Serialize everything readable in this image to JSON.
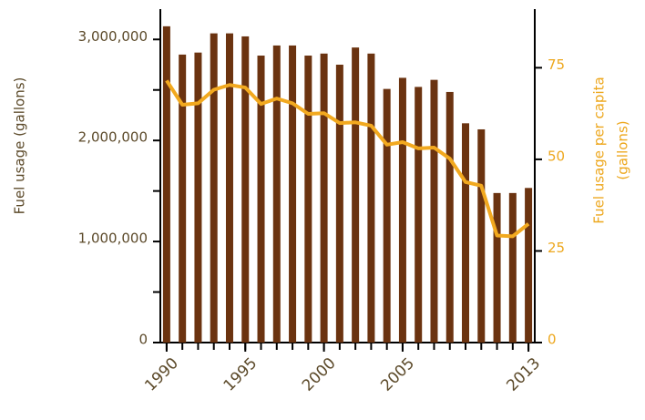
{
  "chart_data": {
    "type": "bar-line",
    "x": [
      1990,
      1991,
      1992,
      1993,
      1994,
      1995,
      1996,
      1997,
      1998,
      1999,
      2000,
      2001,
      2002,
      2003,
      2004,
      2005,
      2006,
      2007,
      2008,
      2009,
      2010,
      2011,
      2012,
      2013
    ],
    "xlim": [
      1989.6,
      2013.4
    ],
    "xticks": [
      1990,
      1995,
      2000,
      2005,
      2013
    ],
    "ylabel": "Fuel usage (gallons)",
    "y2label": [
      "Fuel usage per capita",
      "(gallons)"
    ],
    "ylim": [
      0,
      3300000
    ],
    "yticks": [
      0,
      {
        "value": 1000000,
        "label": "1,000,000"
      },
      {
        "value": 2000000,
        "label": "2,000,000"
      },
      {
        "value": 3000000,
        "label": "3,000,000"
      }
    ],
    "yminorticks": [
      500000,
      1500000,
      2500000
    ],
    "y2lim": [
      0,
      91
    ],
    "y2ticks": [
      0,
      25,
      50,
      75
    ],
    "series": [
      {
        "name": "Fuel usage",
        "type": "bar",
        "color": "#6b3310",
        "values": [
          3130000,
          2850000,
          2870000,
          3060000,
          3060000,
          3030000,
          2840000,
          2940000,
          2940000,
          2840000,
          2860000,
          2750000,
          2920000,
          2860000,
          2510000,
          2620000,
          2530000,
          2600000,
          2480000,
          2170000,
          2110000,
          1480000,
          1480000,
          1530000
        ]
      },
      {
        "name": "Fuel usage per capita",
        "type": "line",
        "axis": "y2",
        "color": "#f2a91f",
        "values": [
          71.5,
          64.9,
          65.3,
          69,
          70.3,
          69.6,
          65.1,
          66.6,
          65.3,
          62.4,
          62.6,
          59.9,
          60.1,
          59.2,
          54,
          54.7,
          53,
          53.2,
          50.2,
          43.8,
          42.8,
          29.2,
          29,
          32.4
        ]
      }
    ]
  }
}
